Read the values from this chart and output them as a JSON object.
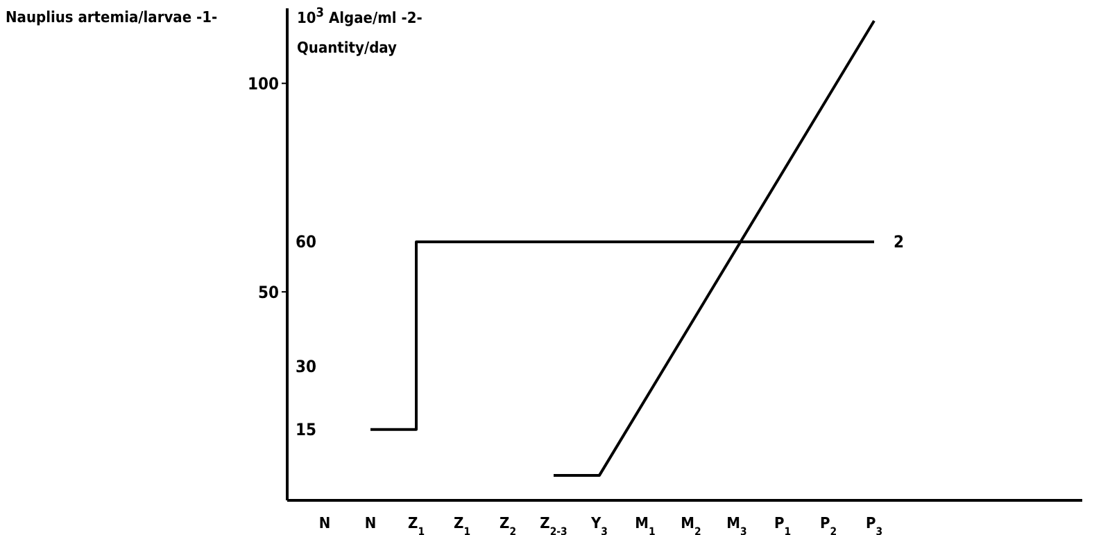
{
  "chart_data": {
    "type": "line",
    "ylabel": "Nauplius artemia/larvae -1-",
    "y2label": "10$^{3}$ Algae/ml -2-",
    "annotations": [
      "Quantity/day"
    ],
    "categories": [
      "N",
      "N",
      "Z$_{1}$",
      "Z$_{1}$",
      "Z$_{2}$",
      "Z$_{2-3}$",
      "Y$_{3}$",
      "M$_{1}$",
      "M$_{2}$",
      "M$_{3}$",
      "P$_{1}$",
      "P$_{2}$",
      "P$_{3}$"
    ],
    "series": [
      {
        "color": "#000000",
        "values": [
          null,
          null,
          null,
          null,
          null,
          6,
          6,
          null,
          null,
          null,
          null,
          null,
          115
        ]
      },
      {
        "type": "step",
        "name": "2",
        "axis": "y2",
        "color": "#000000",
        "values": [
          null,
          15,
          60,
          60,
          60,
          60,
          60,
          60,
          60,
          60,
          60,
          60,
          60
        ]
      }
    ],
    "ylim": [
      0,
      118
    ],
    "yticks": [
      50,
      100
    ],
    "y2lim": [
      -2,
      116
    ],
    "y2ticks": [
      15,
      30,
      60
    ],
    "grid": false,
    "legend": false,
    "marker": "none",
    "line_style": "solid"
  }
}
